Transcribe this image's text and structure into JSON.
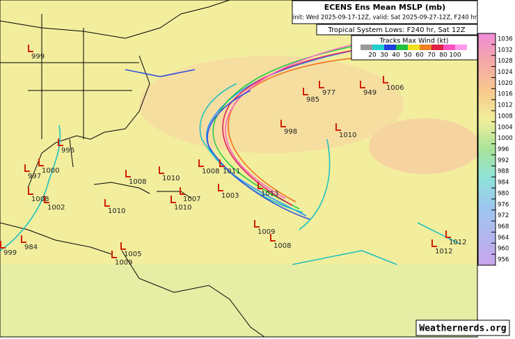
{
  "header": {
    "title": "ECENS Ens Mean MSLP (mb)",
    "init": "init: Wed 2025-09-17-12Z, valid: Sat 2025-09-27-12Z, F240 hr"
  },
  "subtitle": "Tropical System Lows: F240 hr, Sat 12Z",
  "wind_legend": {
    "title": "Tracks Max Wind (kt)",
    "labels": [
      20,
      30,
      40,
      50,
      60,
      70,
      80,
      100
    ]
  },
  "pressure_scale": {
    "labels": [
      1036,
      1032,
      1028,
      1024,
      1020,
      1016,
      1012,
      1008,
      1004,
      1000,
      996,
      992,
      988,
      984,
      980,
      976,
      972,
      968,
      964,
      960,
      956
    ]
  },
  "lows": [
    999,
    996,
    1000,
    997,
    1008,
    1002,
    1010,
    1008,
    1010,
    1007,
    1010,
    1003,
    1011,
    1008,
    1013,
    1009,
    1008,
    1005,
    1009,
    984,
    999,
    998,
    1010,
    985,
    977,
    949,
    1006,
    1012,
    1012
  ],
  "watermark": "Weathernerds.org"
}
